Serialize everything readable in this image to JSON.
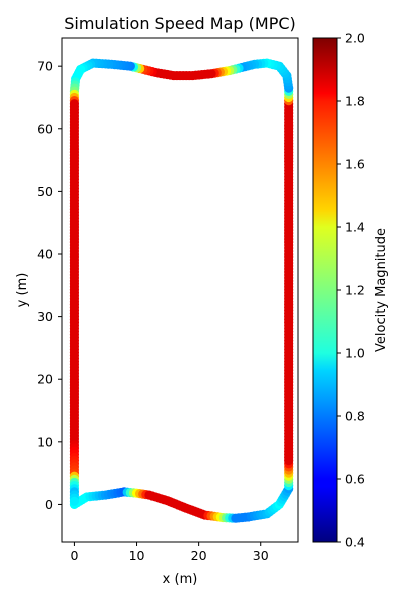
{
  "chart_data": {
    "type": "scatter",
    "title": "Simulation Speed Map (MPC)",
    "xlabel": "x (m)",
    "ylabel": "y (m)",
    "xlim": [
      -2,
      36
    ],
    "ylim": [
      -6,
      74.5
    ],
    "xticks": [
      "0",
      "10",
      "20",
      "30"
    ],
    "yticks": [
      "0",
      "10",
      "20",
      "30",
      "40",
      "50",
      "60",
      "70"
    ],
    "grid": false,
    "colormap": "jet",
    "colorbar": {
      "label": "Velocity Magnitude",
      "range": [
        0.4,
        2.0
      ],
      "ticks": [
        "0.4",
        "0.6",
        "0.8",
        "1.0",
        "1.2",
        "1.4",
        "1.6",
        "1.8",
        "2.0"
      ]
    },
    "series": [
      {
        "points": [
          {
            "x": 0.0,
            "y": 0.0,
            "v": 1.0
          },
          {
            "x": 2.0,
            "y": 1.2,
            "v": 1.0
          },
          {
            "x": 5.0,
            "y": 1.5,
            "v": 0.85
          },
          {
            "x": 8.0,
            "y": 2.0,
            "v": 0.75
          },
          {
            "x": 10.0,
            "y": 1.8,
            "v": 1.4
          },
          {
            "x": 12.0,
            "y": 1.5,
            "v": 1.85
          },
          {
            "x": 15.0,
            "y": 0.6,
            "v": 1.85
          },
          {
            "x": 18.0,
            "y": -0.6,
            "v": 1.85
          },
          {
            "x": 21.0,
            "y": -1.7,
            "v": 1.85
          },
          {
            "x": 24.0,
            "y": -2.1,
            "v": 1.3
          },
          {
            "x": 26.0,
            "y": -2.2,
            "v": 0.8
          },
          {
            "x": 28.0,
            "y": -2.0,
            "v": 0.8
          },
          {
            "x": 31.0,
            "y": -1.5,
            "v": 0.9
          },
          {
            "x": 33.0,
            "y": 0.0,
            "v": 1.0
          },
          {
            "x": 34.5,
            "y": 2.5,
            "v": 0.85
          },
          {
            "x": 34.5,
            "y": 5.0,
            "v": 1.5
          },
          {
            "x": 34.5,
            "y": 7.0,
            "v": 1.85
          },
          {
            "x": 34.5,
            "y": 20.0,
            "v": 1.85
          },
          {
            "x": 34.5,
            "y": 40.0,
            "v": 1.85
          },
          {
            "x": 34.5,
            "y": 60.0,
            "v": 1.85
          },
          {
            "x": 34.5,
            "y": 64.0,
            "v": 1.85
          },
          {
            "x": 34.5,
            "y": 66.5,
            "v": 0.85
          },
          {
            "x": 34.2,
            "y": 68.5,
            "v": 0.9
          },
          {
            "x": 33.0,
            "y": 70.0,
            "v": 0.95
          },
          {
            "x": 31.0,
            "y": 70.5,
            "v": 1.0
          },
          {
            "x": 29.0,
            "y": 70.3,
            "v": 0.9
          },
          {
            "x": 27.0,
            "y": 69.8,
            "v": 0.85
          },
          {
            "x": 25.0,
            "y": 69.3,
            "v": 1.3
          },
          {
            "x": 22.0,
            "y": 68.8,
            "v": 1.85
          },
          {
            "x": 19.0,
            "y": 68.5,
            "v": 1.85
          },
          {
            "x": 16.0,
            "y": 68.5,
            "v": 1.85
          },
          {
            "x": 13.0,
            "y": 69.0,
            "v": 1.85
          },
          {
            "x": 11.0,
            "y": 69.5,
            "v": 1.7
          },
          {
            "x": 9.0,
            "y": 70.0,
            "v": 0.8
          },
          {
            "x": 6.0,
            "y": 70.3,
            "v": 0.85
          },
          {
            "x": 3.0,
            "y": 70.5,
            "v": 0.9
          },
          {
            "x": 1.0,
            "y": 69.5,
            "v": 1.0
          },
          {
            "x": 0.2,
            "y": 68.0,
            "v": 1.0
          },
          {
            "x": 0.0,
            "y": 66.0,
            "v": 1.2
          },
          {
            "x": 0.0,
            "y": 64.0,
            "v": 1.85
          },
          {
            "x": 0.0,
            "y": 50.0,
            "v": 1.85
          },
          {
            "x": 0.0,
            "y": 30.0,
            "v": 1.85
          },
          {
            "x": 0.0,
            "y": 10.0,
            "v": 1.85
          },
          {
            "x": 0.0,
            "y": 5.0,
            "v": 1.7
          },
          {
            "x": 0.0,
            "y": 3.5,
            "v": 1.1
          },
          {
            "x": 0.0,
            "y": 2.0,
            "v": 0.9
          },
          {
            "x": 0.0,
            "y": 0.0,
            "v": 1.0
          }
        ]
      }
    ]
  }
}
